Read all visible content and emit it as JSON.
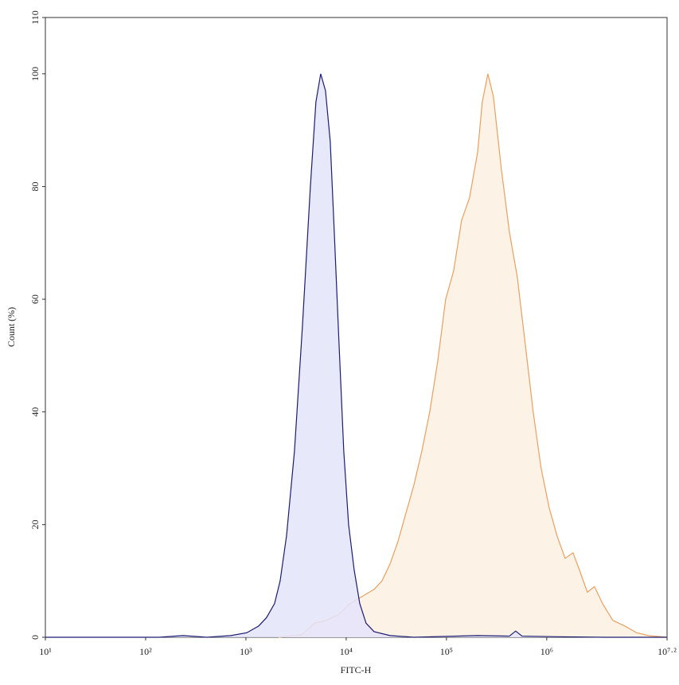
{
  "chart_data": {
    "type": "area",
    "xlabel": "FITC-H",
    "ylabel": "Count (%)",
    "xscale": "log",
    "xlim": [
      10,
      15848932
    ],
    "ylim": [
      0,
      110
    ],
    "xticks": [
      {
        "value": 10,
        "label": "10¹"
      },
      {
        "value": 100,
        "label": "10²"
      },
      {
        "value": 1000,
        "label": "10³"
      },
      {
        "value": 10000,
        "label": "10⁴"
      },
      {
        "value": 100000,
        "label": "10⁵"
      },
      {
        "value": 1000000,
        "label": "10⁶"
      },
      {
        "value": 15848932,
        "label": "10⁷·²"
      }
    ],
    "yticks": [
      0,
      20,
      40,
      60,
      80,
      100,
      110
    ],
    "series": [
      {
        "color": "#e8a060",
        "fill": "#fdf0e2",
        "x": [
          2113,
          3656,
          4819,
          6337,
          8337,
          10970,
          15240,
          18970,
          22750,
          27350,
          32830,
          39380,
          47300,
          56750,
          68080,
          81850,
          98170,
          117800,
          141600,
          169800,
          204200,
          227500,
          258800,
          293800,
          353200,
          423600,
          508200,
          611000,
          732800,
          879000,
          1057000,
          1268000,
          1524000,
          1828000,
          2113000,
          2541000,
          2992000,
          3597000,
          4560000,
          5998000,
          7889000,
          10380000,
          15780000
        ],
        "values": [
          0,
          0.5,
          2.5,
          3,
          4,
          6,
          7.5,
          8.5,
          10,
          13,
          17,
          22,
          27,
          33,
          40,
          49,
          60,
          65,
          74,
          78,
          86,
          95,
          100,
          96,
          83,
          72,
          64,
          52,
          40,
          30,
          23,
          18,
          14,
          15,
          12,
          8,
          9,
          6,
          3,
          2,
          0.8,
          0.3,
          0
        ]
      },
      {
        "color": "#1c1c70",
        "fill": "#e4e4fa",
        "x": [
          10,
          136,
          236,
          408,
          706,
          1019,
          1340,
          1607,
          1932,
          2194,
          2541,
          3048,
          3656,
          4394,
          4989,
          5569,
          6218,
          6934,
          7603,
          8489,
          9462,
          10568,
          12000,
          13650,
          15780,
          18970,
          27350,
          47300,
          204200,
          424000,
          489800,
          567500,
          1268000,
          3793000,
          15780000
        ],
        "values": [
          0,
          0,
          0.3,
          0,
          0.3,
          0.8,
          2,
          3.5,
          6,
          10,
          18,
          33,
          55,
          80,
          95,
          100,
          97,
          88,
          72,
          52,
          33,
          20,
          12,
          6,
          2.5,
          1,
          0.3,
          0,
          0.3,
          0.2,
          1.1,
          0.2,
          0.1,
          0,
          0
        ]
      }
    ]
  }
}
